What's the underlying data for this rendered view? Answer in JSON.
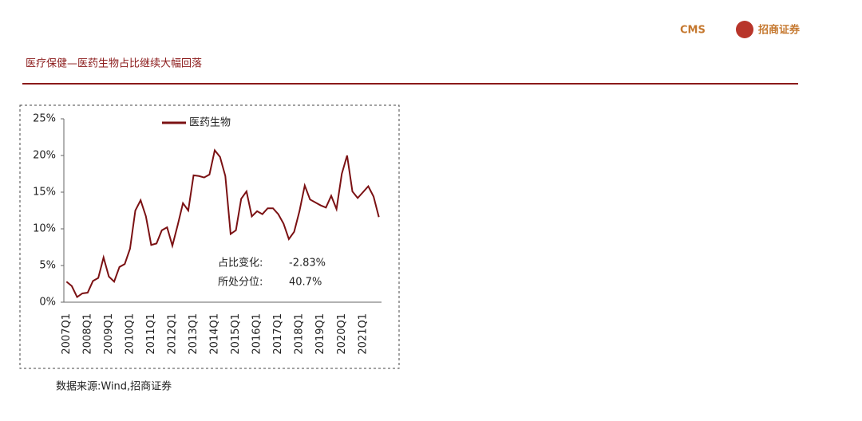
{
  "header": {
    "logo_text": "CMS",
    "brand": "招商证券",
    "title": "医疗保健—医药生物占比继续大幅回落"
  },
  "chart_data": {
    "type": "line",
    "categories": [
      "2007Q1",
      null,
      null,
      null,
      "2008Q1",
      null,
      null,
      null,
      "2009Q1",
      null,
      null,
      null,
      "2010Q1",
      null,
      null,
      null,
      "2011Q1",
      null,
      null,
      null,
      "2012Q1",
      null,
      null,
      null,
      "2013Q1",
      null,
      null,
      null,
      "2014Q1",
      null,
      null,
      null,
      "2015Q1",
      null,
      null,
      null,
      "2016Q1",
      null,
      null,
      null,
      "2017Q1",
      null,
      null,
      null,
      "2018Q1",
      null,
      null,
      null,
      "2019Q1",
      null,
      null,
      null,
      "2020Q1",
      null,
      null,
      null,
      "2021Q1",
      null,
      null,
      null
    ],
    "series": [
      {
        "name": "医药生物",
        "color": "#7b1113",
        "values": [
          2.8,
          2.2,
          0.7,
          1.2,
          1.3,
          2.9,
          3.3,
          6.1,
          3.5,
          2.8,
          4.8,
          5.2,
          7.3,
          12.5,
          13.9,
          11.7,
          7.8,
          8.0,
          9.8,
          10.2,
          7.7,
          10.5,
          13.5,
          12.5,
          17.3,
          17.2,
          17.0,
          17.4,
          20.7,
          19.8,
          17.2,
          9.3,
          9.8,
          14.1,
          15.1,
          11.7,
          12.4,
          12.0,
          12.8,
          12.8,
          12.0,
          10.7,
          8.6,
          9.6,
          12.4,
          15.9,
          14.0,
          13.6,
          13.2,
          12.9,
          14.5,
          12.7,
          17.5,
          20.0,
          15.1,
          14.2,
          15.0,
          15.8,
          14.4,
          11.6
        ]
      }
    ],
    "ylim": [
      0,
      25
    ],
    "yticks": [
      {
        "value": 0,
        "label": "0%"
      },
      {
        "value": 5,
        "label": "5%"
      },
      {
        "value": 10,
        "label": "10%"
      },
      {
        "value": 15,
        "label": "15%"
      },
      {
        "value": 20,
        "label": "20%"
      },
      {
        "value": 25,
        "label": "25%"
      }
    ],
    "annotations": [
      {
        "label": "占比变化:",
        "text": "-2.83%"
      },
      {
        "label": "所处分位:",
        "text": "40.7%"
      }
    ],
    "source": "数据来源:Wind,招商证券"
  }
}
